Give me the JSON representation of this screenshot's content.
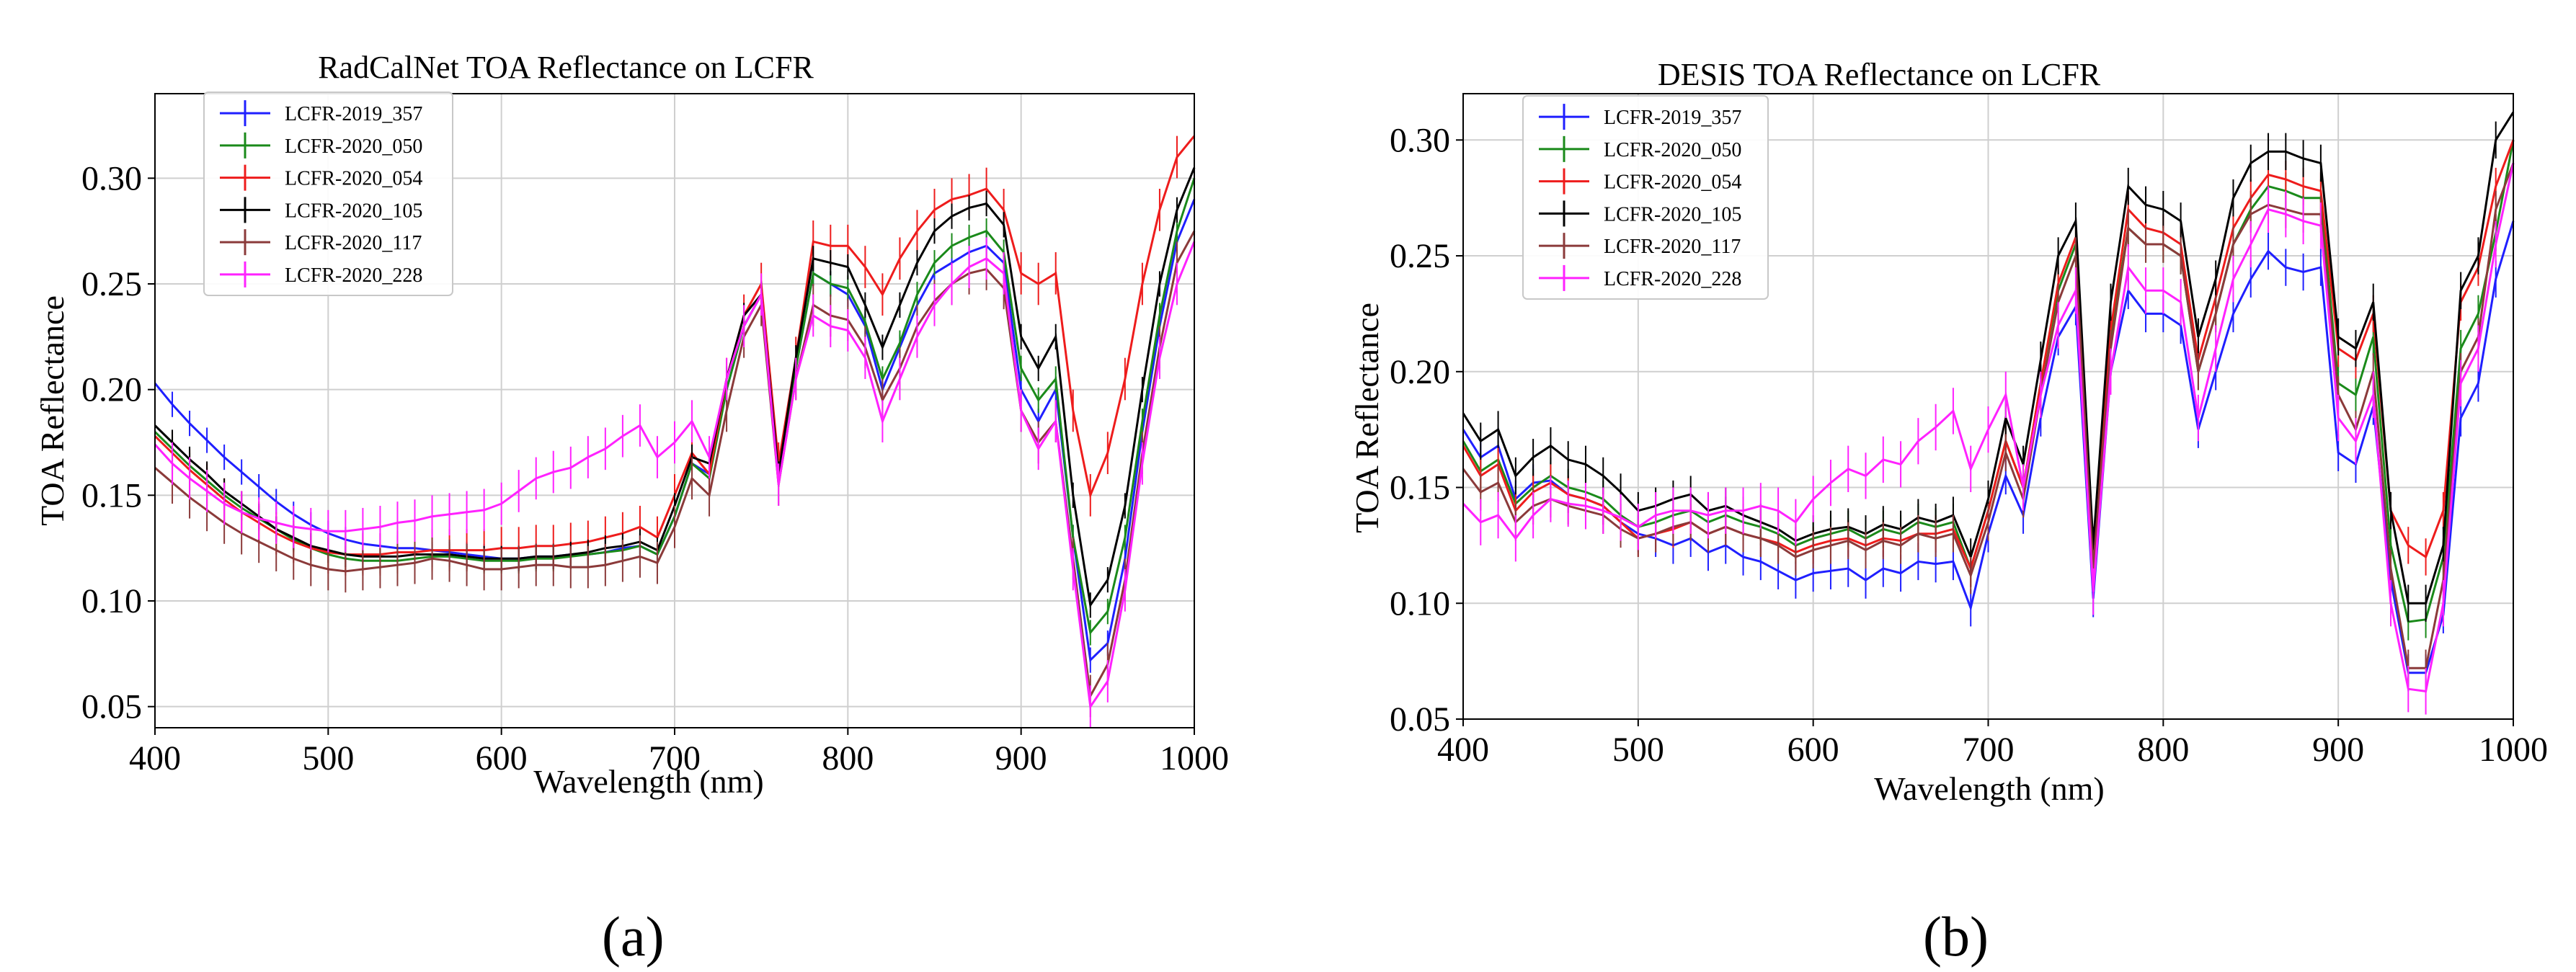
{
  "figure": {
    "panel_a_caption": "(a)",
    "panel_b_caption": "(b)"
  },
  "chart_data": [
    {
      "type": "line",
      "title": "RadCalNet TOA Reflectance on LCFR",
      "xlabel": "Wavelength (nm)",
      "ylabel": "TOA Reflectance",
      "xlim": [
        400,
        1000
      ],
      "ylim": [
        0.04,
        0.34
      ],
      "xticks": [
        400,
        500,
        600,
        700,
        800,
        900,
        1000
      ],
      "xtick_labels": [
        "400",
        "500",
        "600",
        "700",
        "800",
        "900",
        "1000"
      ],
      "yticks": [
        0.05,
        0.1,
        0.15,
        0.2,
        0.25,
        0.3
      ],
      "ytick_labels": [
        "0.05",
        "0.10",
        "0.15",
        "0.20",
        "0.25",
        "0.30"
      ],
      "grid": true,
      "legend": "top-left",
      "x": [
        400,
        410,
        420,
        430,
        440,
        450,
        460,
        470,
        480,
        490,
        500,
        510,
        520,
        530,
        540,
        550,
        560,
        570,
        580,
        590,
        600,
        610,
        620,
        630,
        640,
        650,
        660,
        670,
        680,
        690,
        700,
        710,
        720,
        730,
        740,
        750,
        760,
        770,
        780,
        790,
        800,
        810,
        820,
        830,
        840,
        850,
        860,
        870,
        880,
        890,
        900,
        910,
        920,
        930,
        940,
        950,
        960,
        970,
        980,
        990,
        1000
      ],
      "series": [
        {
          "name": "LCFR-2019_357",
          "color": "#1f1fff",
          "errorbar": 0.006,
          "values": [
            0.203,
            0.193,
            0.184,
            0.176,
            0.168,
            0.161,
            0.154,
            0.147,
            0.141,
            0.136,
            0.132,
            0.129,
            0.127,
            0.126,
            0.125,
            0.125,
            0.124,
            0.123,
            0.122,
            0.121,
            0.12,
            0.12,
            0.121,
            0.121,
            0.122,
            0.122,
            0.123,
            0.125,
            0.126,
            0.122,
            0.14,
            0.165,
            0.16,
            0.2,
            0.23,
            0.245,
            0.16,
            0.21,
            0.255,
            0.25,
            0.245,
            0.23,
            0.2,
            0.22,
            0.24,
            0.255,
            0.26,
            0.265,
            0.268,
            0.26,
            0.2,
            0.185,
            0.2,
            0.13,
            0.072,
            0.08,
            0.12,
            0.18,
            0.23,
            0.27,
            0.29
          ]
        },
        {
          "name": "LCFR-2020_050",
          "color": "#1a8a1a",
          "errorbar": 0.006,
          "values": [
            0.18,
            0.172,
            0.164,
            0.157,
            0.15,
            0.144,
            0.139,
            0.134,
            0.129,
            0.125,
            0.122,
            0.12,
            0.119,
            0.119,
            0.119,
            0.12,
            0.121,
            0.121,
            0.12,
            0.119,
            0.119,
            0.119,
            0.12,
            0.12,
            0.121,
            0.122,
            0.123,
            0.124,
            0.126,
            0.122,
            0.14,
            0.165,
            0.158,
            0.2,
            0.23,
            0.245,
            0.16,
            0.21,
            0.255,
            0.25,
            0.248,
            0.232,
            0.205,
            0.222,
            0.245,
            0.26,
            0.268,
            0.272,
            0.275,
            0.265,
            0.21,
            0.195,
            0.205,
            0.13,
            0.085,
            0.095,
            0.13,
            0.185,
            0.235,
            0.275,
            0.3
          ]
        },
        {
          "name": "LCFR-2020_054",
          "color": "#ee1c1c",
          "errorbar": 0.01,
          "values": [
            0.178,
            0.17,
            0.162,
            0.155,
            0.148,
            0.142,
            0.137,
            0.132,
            0.128,
            0.125,
            0.123,
            0.122,
            0.122,
            0.122,
            0.123,
            0.123,
            0.124,
            0.124,
            0.124,
            0.124,
            0.125,
            0.125,
            0.126,
            0.126,
            0.127,
            0.128,
            0.13,
            0.132,
            0.135,
            0.13,
            0.15,
            0.17,
            0.16,
            0.205,
            0.235,
            0.25,
            0.165,
            0.215,
            0.27,
            0.268,
            0.268,
            0.258,
            0.245,
            0.262,
            0.275,
            0.285,
            0.29,
            0.292,
            0.295,
            0.285,
            0.255,
            0.25,
            0.255,
            0.19,
            0.15,
            0.17,
            0.205,
            0.25,
            0.285,
            0.31,
            0.32
          ]
        },
        {
          "name": "LCFR-2020_105",
          "color": "#000000",
          "errorbar": 0.006,
          "values": [
            0.183,
            0.175,
            0.167,
            0.16,
            0.152,
            0.146,
            0.14,
            0.134,
            0.13,
            0.126,
            0.124,
            0.122,
            0.121,
            0.121,
            0.121,
            0.122,
            0.122,
            0.122,
            0.121,
            0.12,
            0.12,
            0.12,
            0.121,
            0.121,
            0.122,
            0.123,
            0.125,
            0.126,
            0.128,
            0.124,
            0.145,
            0.168,
            0.165,
            0.205,
            0.235,
            0.245,
            0.16,
            0.215,
            0.262,
            0.26,
            0.258,
            0.24,
            0.22,
            0.24,
            0.26,
            0.275,
            0.282,
            0.286,
            0.288,
            0.278,
            0.225,
            0.21,
            0.225,
            0.15,
            0.098,
            0.11,
            0.145,
            0.2,
            0.25,
            0.285,
            0.305
          ]
        },
        {
          "name": "LCFR-2020_117",
          "color": "#8b3a3a",
          "errorbar": 0.01,
          "values": [
            0.163,
            0.156,
            0.149,
            0.143,
            0.137,
            0.132,
            0.128,
            0.124,
            0.12,
            0.117,
            0.115,
            0.114,
            0.115,
            0.116,
            0.117,
            0.118,
            0.12,
            0.119,
            0.117,
            0.115,
            0.115,
            0.116,
            0.117,
            0.117,
            0.116,
            0.116,
            0.117,
            0.119,
            0.121,
            0.118,
            0.135,
            0.158,
            0.15,
            0.19,
            0.225,
            0.24,
            0.155,
            0.205,
            0.24,
            0.235,
            0.233,
            0.22,
            0.195,
            0.21,
            0.23,
            0.242,
            0.25,
            0.255,
            0.257,
            0.248,
            0.19,
            0.175,
            0.185,
            0.12,
            0.055,
            0.07,
            0.11,
            0.17,
            0.22,
            0.26,
            0.275
          ]
        },
        {
          "name": "LCFR-2020_228",
          "color": "#ff22ff",
          "errorbar": 0.01,
          "values": [
            0.174,
            0.165,
            0.158,
            0.152,
            0.146,
            0.142,
            0.139,
            0.137,
            0.135,
            0.134,
            0.133,
            0.133,
            0.134,
            0.135,
            0.137,
            0.138,
            0.14,
            0.141,
            0.142,
            0.143,
            0.146,
            0.152,
            0.158,
            0.161,
            0.163,
            0.168,
            0.172,
            0.178,
            0.183,
            0.168,
            0.175,
            0.185,
            0.168,
            0.205,
            0.23,
            0.245,
            0.155,
            0.205,
            0.235,
            0.23,
            0.228,
            0.215,
            0.185,
            0.205,
            0.225,
            0.24,
            0.25,
            0.258,
            0.262,
            0.255,
            0.19,
            0.172,
            0.185,
            0.115,
            0.05,
            0.062,
            0.105,
            0.165,
            0.215,
            0.25,
            0.27
          ]
        }
      ]
    },
    {
      "type": "line",
      "title": "DESIS TOA Reflectance on LCFR",
      "xlabel": "Wavelength (nm)",
      "ylabel": "TOA Reflectance",
      "xlim": [
        400,
        1000
      ],
      "ylim": [
        0.05,
        0.32
      ],
      "xticks": [
        400,
        500,
        600,
        700,
        800,
        900,
        1000
      ],
      "xtick_labels": [
        "400",
        "500",
        "600",
        "700",
        "800",
        "900",
        "1000"
      ],
      "yticks": [
        0.05,
        0.1,
        0.15,
        0.2,
        0.25,
        0.3
      ],
      "ytick_labels": [
        "0.05",
        "0.10",
        "0.15",
        "0.20",
        "0.25",
        "0.30"
      ],
      "grid": true,
      "legend": "top-left",
      "x": [
        400,
        410,
        420,
        430,
        440,
        450,
        460,
        470,
        480,
        490,
        500,
        510,
        520,
        530,
        540,
        550,
        560,
        570,
        580,
        590,
        600,
        610,
        620,
        630,
        640,
        650,
        660,
        670,
        680,
        690,
        700,
        710,
        720,
        730,
        740,
        750,
        760,
        770,
        780,
        790,
        800,
        810,
        820,
        830,
        840,
        850,
        860,
        870,
        880,
        890,
        900,
        910,
        920,
        930,
        940,
        950,
        960,
        970,
        980,
        990,
        1000
      ],
      "series": [
        {
          "name": "LCFR-2019_357",
          "color": "#1f1fff",
          "errorbar": 0.008,
          "values": [
            0.175,
            0.163,
            0.168,
            0.145,
            0.152,
            0.153,
            0.147,
            0.145,
            0.142,
            0.135,
            0.13,
            0.128,
            0.125,
            0.128,
            0.122,
            0.125,
            0.12,
            0.118,
            0.114,
            0.11,
            0.113,
            0.114,
            0.115,
            0.11,
            0.115,
            0.113,
            0.118,
            0.117,
            0.118,
            0.098,
            0.13,
            0.155,
            0.138,
            0.18,
            0.215,
            0.228,
            0.102,
            0.2,
            0.235,
            0.225,
            0.225,
            0.22,
            0.175,
            0.2,
            0.225,
            0.24,
            0.252,
            0.245,
            0.243,
            0.245,
            0.165,
            0.16,
            0.185,
            0.11,
            0.07,
            0.07,
            0.095,
            0.18,
            0.195,
            0.24,
            0.265
          ]
        },
        {
          "name": "LCFR-2020_050",
          "color": "#1a8a1a",
          "errorbar": 0.008,
          "values": [
            0.17,
            0.157,
            0.162,
            0.143,
            0.15,
            0.155,
            0.15,
            0.148,
            0.145,
            0.138,
            0.133,
            0.135,
            0.138,
            0.14,
            0.135,
            0.138,
            0.135,
            0.133,
            0.13,
            0.125,
            0.128,
            0.13,
            0.132,
            0.128,
            0.132,
            0.13,
            0.135,
            0.133,
            0.135,
            0.115,
            0.14,
            0.17,
            0.15,
            0.195,
            0.235,
            0.255,
            0.12,
            0.215,
            0.262,
            0.255,
            0.255,
            0.25,
            0.2,
            0.225,
            0.255,
            0.27,
            0.28,
            0.278,
            0.275,
            0.275,
            0.195,
            0.19,
            0.215,
            0.125,
            0.092,
            0.093,
            0.12,
            0.21,
            0.225,
            0.26,
            0.3
          ]
        },
        {
          "name": "LCFR-2020_054",
          "color": "#ee1c1c",
          "errorbar": 0.008,
          "values": [
            0.168,
            0.155,
            0.16,
            0.14,
            0.148,
            0.152,
            0.147,
            0.145,
            0.142,
            0.135,
            0.128,
            0.13,
            0.132,
            0.135,
            0.13,
            0.133,
            0.13,
            0.128,
            0.126,
            0.122,
            0.125,
            0.127,
            0.128,
            0.125,
            0.128,
            0.127,
            0.13,
            0.13,
            0.132,
            0.115,
            0.14,
            0.17,
            0.15,
            0.195,
            0.238,
            0.258,
            0.12,
            0.218,
            0.27,
            0.262,
            0.26,
            0.255,
            0.205,
            0.232,
            0.262,
            0.275,
            0.285,
            0.283,
            0.28,
            0.278,
            0.21,
            0.205,
            0.225,
            0.14,
            0.125,
            0.12,
            0.14,
            0.23,
            0.245,
            0.28,
            0.3
          ]
        },
        {
          "name": "LCFR-2020_105",
          "color": "#000000",
          "errorbar": 0.008,
          "values": [
            0.182,
            0.17,
            0.175,
            0.155,
            0.163,
            0.168,
            0.162,
            0.16,
            0.155,
            0.148,
            0.14,
            0.142,
            0.145,
            0.147,
            0.14,
            0.142,
            0.138,
            0.135,
            0.132,
            0.127,
            0.13,
            0.132,
            0.133,
            0.13,
            0.134,
            0.132,
            0.137,
            0.135,
            0.138,
            0.12,
            0.145,
            0.18,
            0.16,
            0.205,
            0.25,
            0.265,
            0.125,
            0.23,
            0.28,
            0.272,
            0.27,
            0.265,
            0.215,
            0.24,
            0.275,
            0.29,
            0.295,
            0.295,
            0.292,
            0.29,
            0.215,
            0.21,
            0.23,
            0.14,
            0.1,
            0.1,
            0.125,
            0.235,
            0.25,
            0.3,
            0.312
          ]
        },
        {
          "name": "LCFR-2020_117",
          "color": "#8b3a3a",
          "errorbar": 0.008,
          "values": [
            0.158,
            0.148,
            0.152,
            0.135,
            0.142,
            0.145,
            0.142,
            0.14,
            0.138,
            0.132,
            0.128,
            0.13,
            0.133,
            0.135,
            0.13,
            0.133,
            0.13,
            0.128,
            0.125,
            0.12,
            0.123,
            0.125,
            0.127,
            0.123,
            0.127,
            0.125,
            0.13,
            0.128,
            0.13,
            0.112,
            0.135,
            0.165,
            0.145,
            0.19,
            0.23,
            0.25,
            0.115,
            0.21,
            0.262,
            0.255,
            0.255,
            0.25,
            0.2,
            0.225,
            0.255,
            0.268,
            0.272,
            0.27,
            0.268,
            0.268,
            0.19,
            0.175,
            0.2,
            0.115,
            0.072,
            0.072,
            0.11,
            0.2,
            0.215,
            0.27,
            0.29
          ]
        },
        {
          "name": "LCFR-2020_228",
          "color": "#ff22ff",
          "errorbar": 0.01,
          "values": [
            0.143,
            0.135,
            0.138,
            0.128,
            0.138,
            0.145,
            0.143,
            0.142,
            0.14,
            0.137,
            0.133,
            0.138,
            0.14,
            0.14,
            0.138,
            0.14,
            0.14,
            0.142,
            0.14,
            0.135,
            0.145,
            0.152,
            0.158,
            0.155,
            0.162,
            0.16,
            0.17,
            0.176,
            0.183,
            0.158,
            0.175,
            0.19,
            0.15,
            0.19,
            0.22,
            0.235,
            0.105,
            0.2,
            0.245,
            0.235,
            0.235,
            0.23,
            0.18,
            0.21,
            0.24,
            0.255,
            0.27,
            0.268,
            0.265,
            0.263,
            0.18,
            0.17,
            0.19,
            0.1,
            0.063,
            0.062,
            0.1,
            0.195,
            0.21,
            0.255,
            0.29
          ]
        }
      ]
    }
  ]
}
